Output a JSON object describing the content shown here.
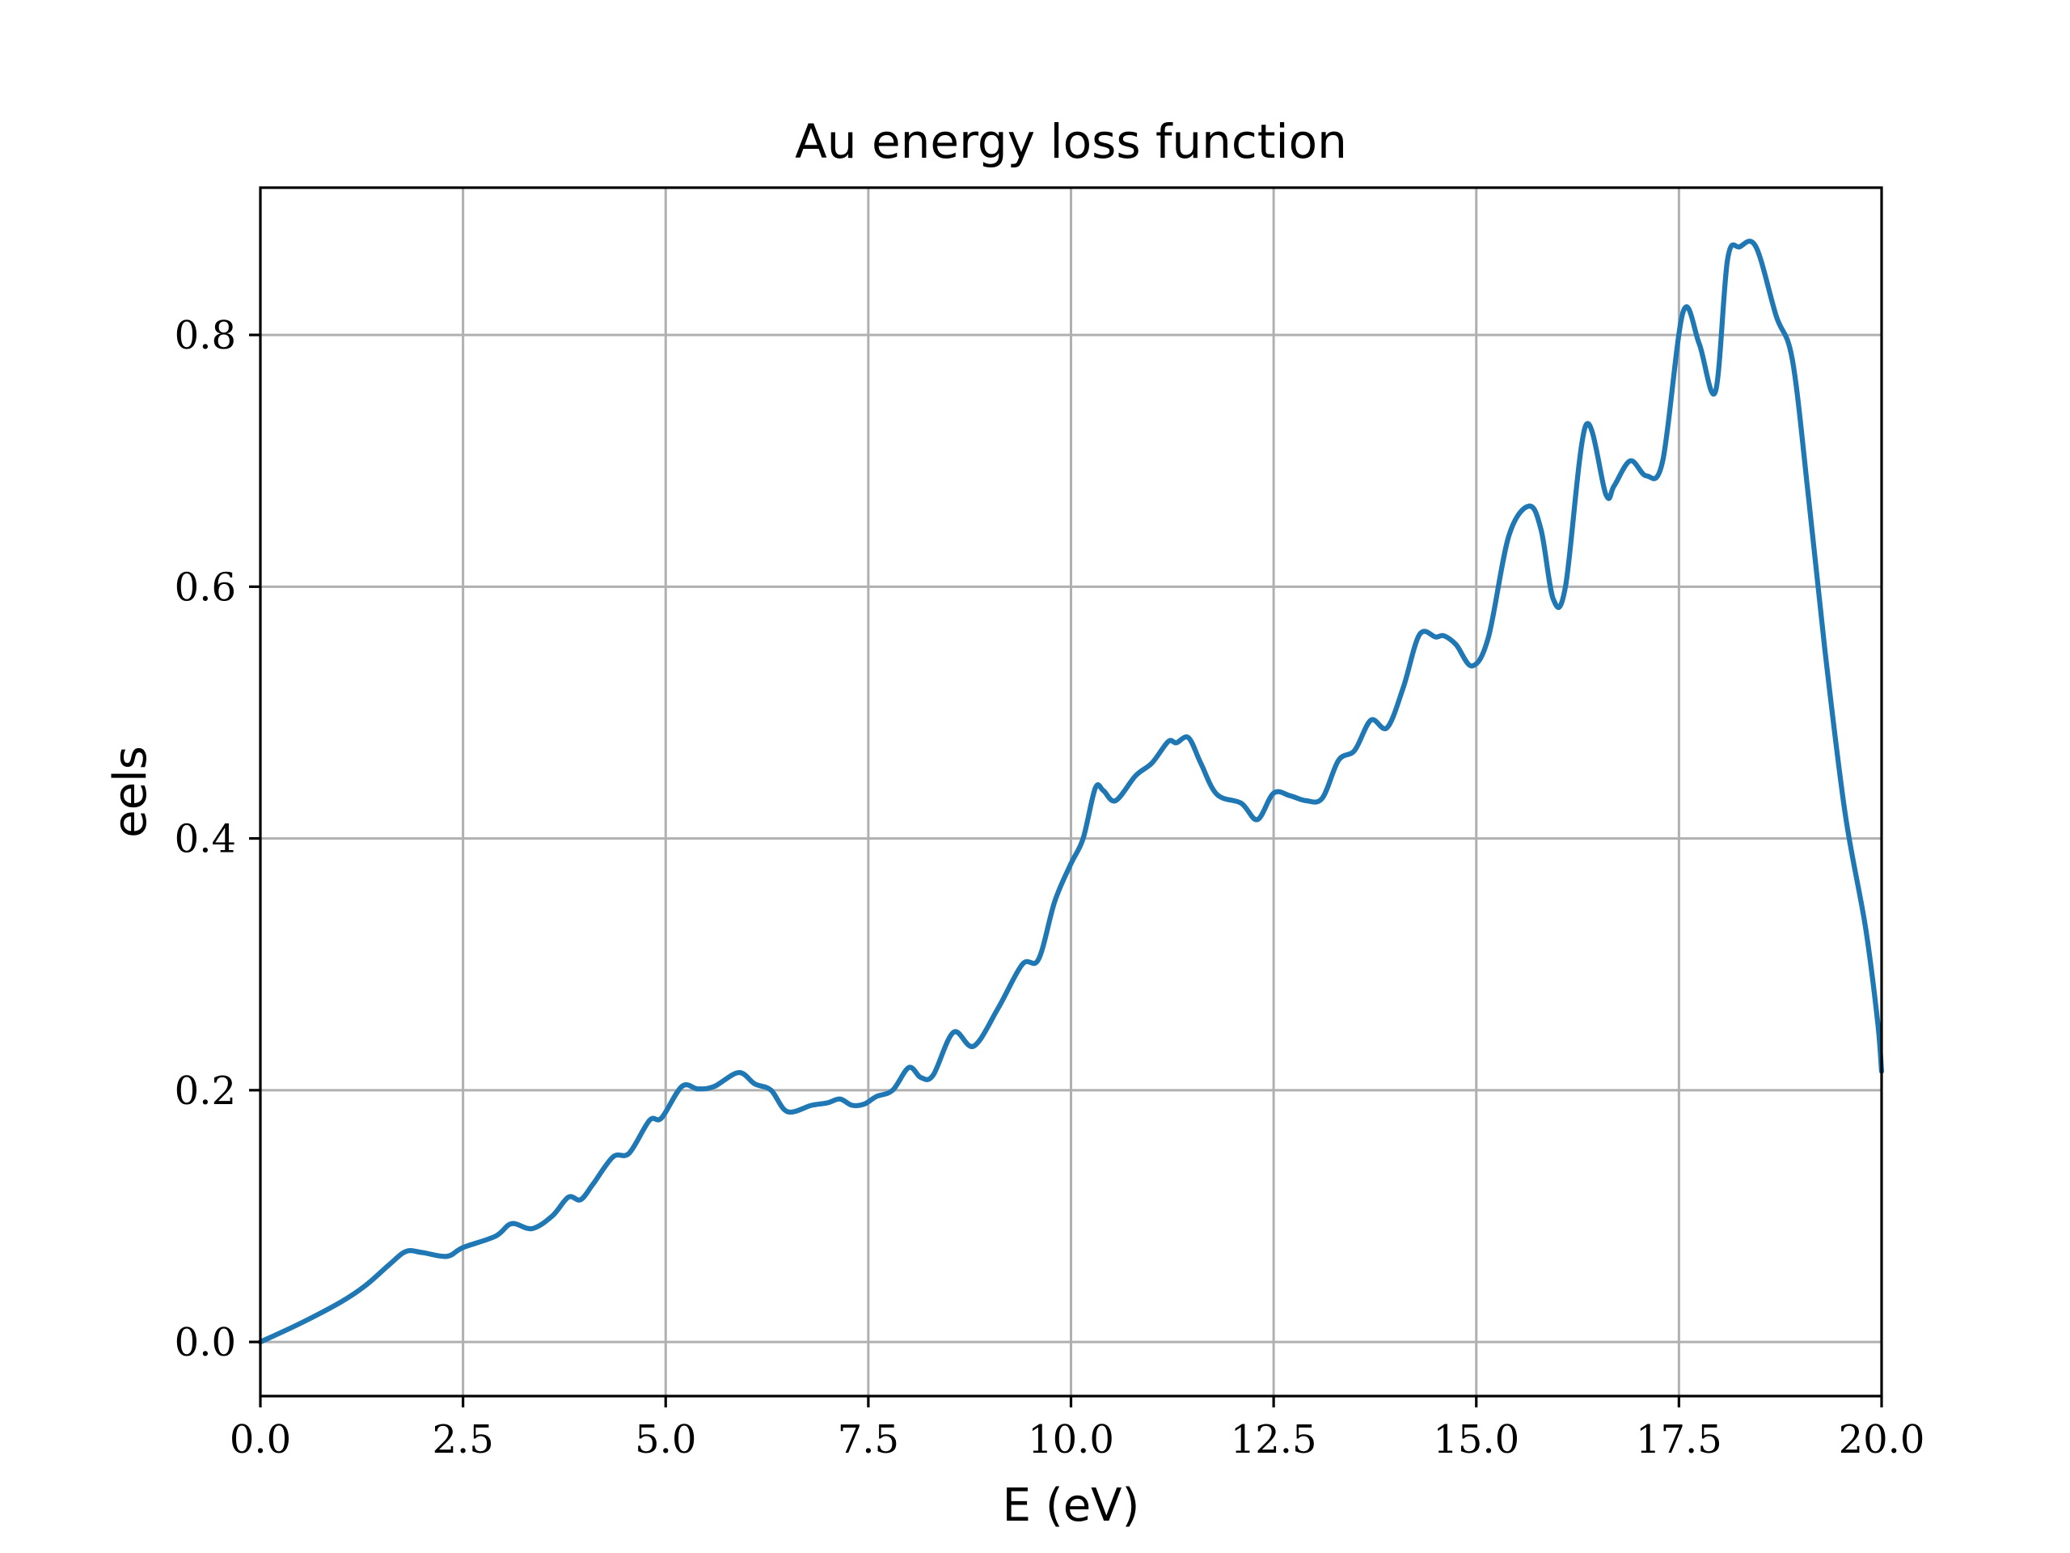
{
  "chart_data": {
    "type": "line",
    "title": "Au energy loss function",
    "xlabel": "E (eV)",
    "ylabel": "eels",
    "xlim": [
      0,
      20
    ],
    "ylim": [
      -0.043,
      0.917
    ],
    "x_ticks": [
      0,
      2.5,
      5,
      7.5,
      10,
      12.5,
      15,
      17.5,
      20
    ],
    "x_tick_labels": [
      "0.0",
      "2.5",
      "5.0",
      "7.5",
      "10.0",
      "12.5",
      "15.0",
      "17.5",
      "20.0"
    ],
    "y_ticks": [
      0,
      0.2,
      0.4,
      0.6,
      0.8
    ],
    "y_tick_labels": [
      "0.0",
      "0.2",
      "0.4",
      "0.6",
      "0.8"
    ],
    "grid": true,
    "line_color": "#1f77b4",
    "series": [
      {
        "x": [
          0,
          0.5,
          1.0,
          1.3,
          1.6,
          1.8,
          2.0,
          2.3,
          2.5,
          2.9,
          3.1,
          3.35,
          3.6,
          3.8,
          3.95,
          4.1,
          4.35,
          4.55,
          4.8,
          4.95,
          5.2,
          5.4,
          5.6,
          5.9,
          6.1,
          6.3,
          6.5,
          6.8,
          7.0,
          7.15,
          7.3,
          7.45,
          7.6,
          7.8,
          8.0,
          8.15,
          8.3,
          8.55,
          8.8,
          9.1,
          9.4,
          9.6,
          9.8,
          10.0,
          10.15,
          10.3,
          10.4,
          10.55,
          10.8,
          11.0,
          11.2,
          11.3,
          11.45,
          11.6,
          11.8,
          12.1,
          12.3,
          12.5,
          12.7,
          12.9,
          13.1,
          13.3,
          13.5,
          13.7,
          13.9,
          14.1,
          14.3,
          14.5,
          14.6,
          14.75,
          14.95,
          15.15,
          15.4,
          15.65,
          15.8,
          15.95,
          16.1,
          16.35,
          16.6,
          16.7,
          16.9,
          17.1,
          17.3,
          17.55,
          17.75,
          17.95,
          18.1,
          18.25,
          18.45,
          18.7,
          18.9,
          19.1,
          19.3,
          19.55,
          19.8,
          19.95,
          20.0
        ],
        "y": [
          0.0,
          0.015,
          0.032,
          0.045,
          0.062,
          0.072,
          0.071,
          0.068,
          0.075,
          0.084,
          0.094,
          0.09,
          0.1,
          0.115,
          0.113,
          0.125,
          0.147,
          0.15,
          0.176,
          0.178,
          0.203,
          0.201,
          0.203,
          0.214,
          0.205,
          0.2,
          0.183,
          0.188,
          0.19,
          0.193,
          0.188,
          0.189,
          0.195,
          0.2,
          0.218,
          0.21,
          0.212,
          0.246,
          0.235,
          0.265,
          0.3,
          0.304,
          0.35,
          0.38,
          0.4,
          0.44,
          0.438,
          0.43,
          0.45,
          0.46,
          0.477,
          0.476,
          0.48,
          0.46,
          0.435,
          0.428,
          0.415,
          0.436,
          0.434,
          0.43,
          0.432,
          0.462,
          0.47,
          0.494,
          0.488,
          0.52,
          0.562,
          0.56,
          0.561,
          0.554,
          0.537,
          0.56,
          0.64,
          0.664,
          0.645,
          0.59,
          0.6,
          0.728,
          0.673,
          0.68,
          0.7,
          0.688,
          0.7,
          0.818,
          0.793,
          0.755,
          0.86,
          0.87,
          0.87,
          0.815,
          0.78,
          0.67,
          0.55,
          0.42,
          0.33,
          0.255,
          0.215
        ]
      }
    ]
  }
}
